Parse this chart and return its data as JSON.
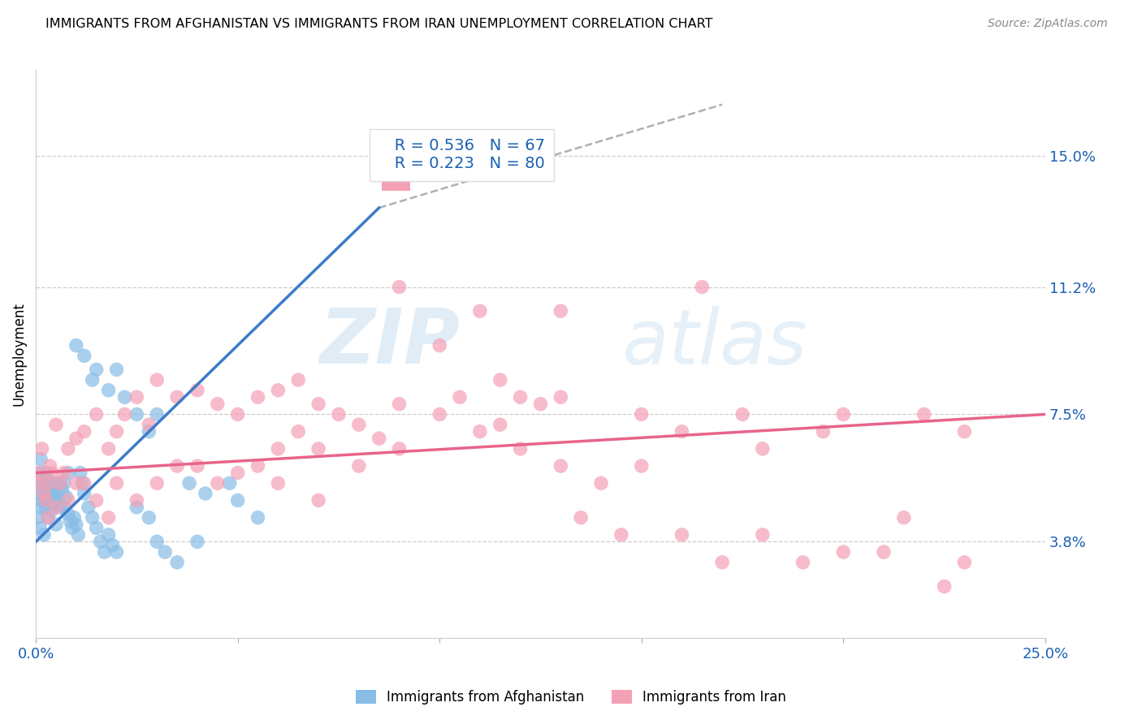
{
  "title": "IMMIGRANTS FROM AFGHANISTAN VS IMMIGRANTS FROM IRAN UNEMPLOYMENT CORRELATION CHART",
  "source": "Source: ZipAtlas.com",
  "ylabel": "Unemployment",
  "ytick_values": [
    3.8,
    7.5,
    11.2,
    15.0
  ],
  "xlim": [
    0.0,
    25.0
  ],
  "ylim": [
    1.0,
    17.5
  ],
  "afghanistan_color": "#88bde6",
  "iran_color": "#f4a0b5",
  "afghanistan_R": 0.536,
  "afghanistan_N": 67,
  "iran_R": 0.223,
  "iran_N": 80,
  "legend_label_afghanistan": "Immigrants from Afghanistan",
  "legend_label_iran": "Immigrants from Iran",
  "watermark_zip": "ZIP",
  "watermark_atlas": "atlas",
  "blue_line_color": "#3d7cc9",
  "pink_line_color": "#e8648a",
  "gray_dash_color": "#b0b0b0",
  "legend_text_color": "#1a5fb4",
  "afghanistan_line": [
    [
      0.0,
      3.8
    ],
    [
      8.5,
      13.5
    ]
  ],
  "iran_line": [
    [
      0.0,
      5.8
    ],
    [
      25.0,
      7.5
    ]
  ],
  "diagonal_line": [
    [
      8.5,
      13.5
    ],
    [
      17.0,
      16.5
    ]
  ],
  "afghanistan_points": [
    [
      0.05,
      5.5
    ],
    [
      0.08,
      5.2
    ],
    [
      0.1,
      5.8
    ],
    [
      0.12,
      6.2
    ],
    [
      0.15,
      5.0
    ],
    [
      0.18,
      5.3
    ],
    [
      0.2,
      5.5
    ],
    [
      0.22,
      5.1
    ],
    [
      0.25,
      4.8
    ],
    [
      0.28,
      5.6
    ],
    [
      0.3,
      5.4
    ],
    [
      0.32,
      5.2
    ],
    [
      0.35,
      5.0
    ],
    [
      0.38,
      4.7
    ],
    [
      0.4,
      5.3
    ],
    [
      0.42,
      5.1
    ],
    [
      0.45,
      4.9
    ],
    [
      0.48,
      5.5
    ],
    [
      0.5,
      5.2
    ],
    [
      0.55,
      5.0
    ],
    [
      0.6,
      5.5
    ],
    [
      0.65,
      5.3
    ],
    [
      0.7,
      4.8
    ],
    [
      0.75,
      5.1
    ],
    [
      0.8,
      4.6
    ],
    [
      0.85,
      4.4
    ],
    [
      0.9,
      4.2
    ],
    [
      0.95,
      4.5
    ],
    [
      1.0,
      4.3
    ],
    [
      1.05,
      4.0
    ],
    [
      1.1,
      5.8
    ],
    [
      1.15,
      5.5
    ],
    [
      1.2,
      5.2
    ],
    [
      1.3,
      4.8
    ],
    [
      1.4,
      4.5
    ],
    [
      1.5,
      4.2
    ],
    [
      1.6,
      3.8
    ],
    [
      1.7,
      3.5
    ],
    [
      1.8,
      4.0
    ],
    [
      1.9,
      3.7
    ],
    [
      2.0,
      3.5
    ],
    [
      1.0,
      9.5
    ],
    [
      1.5,
      8.8
    ],
    [
      1.8,
      8.2
    ],
    [
      2.0,
      8.8
    ],
    [
      2.2,
      8.0
    ],
    [
      2.5,
      7.5
    ],
    [
      2.8,
      7.0
    ],
    [
      3.0,
      7.5
    ],
    [
      1.2,
      9.2
    ],
    [
      1.4,
      8.5
    ],
    [
      2.5,
      4.8
    ],
    [
      2.8,
      4.5
    ],
    [
      3.0,
      3.8
    ],
    [
      3.2,
      3.5
    ],
    [
      3.5,
      3.2
    ],
    [
      4.0,
      3.8
    ],
    [
      3.8,
      5.5
    ],
    [
      4.2,
      5.2
    ],
    [
      4.8,
      5.5
    ],
    [
      5.0,
      5.0
    ],
    [
      5.5,
      4.5
    ],
    [
      0.05,
      4.5
    ],
    [
      0.1,
      4.2
    ],
    [
      0.15,
      4.8
    ],
    [
      0.2,
      4.0
    ],
    [
      0.25,
      5.8
    ],
    [
      0.3,
      4.5
    ],
    [
      0.4,
      5.5
    ],
    [
      0.5,
      4.3
    ],
    [
      0.6,
      4.8
    ],
    [
      0.7,
      5.5
    ],
    [
      0.8,
      5.8
    ]
  ],
  "iran_points": [
    [
      0.05,
      5.5
    ],
    [
      0.1,
      5.8
    ],
    [
      0.15,
      6.5
    ],
    [
      0.2,
      5.2
    ],
    [
      0.25,
      5.0
    ],
    [
      0.3,
      5.5
    ],
    [
      0.35,
      6.0
    ],
    [
      0.4,
      5.8
    ],
    [
      0.5,
      7.2
    ],
    [
      0.6,
      5.5
    ],
    [
      0.7,
      5.8
    ],
    [
      0.8,
      6.5
    ],
    [
      1.0,
      6.8
    ],
    [
      1.2,
      7.0
    ],
    [
      1.5,
      7.5
    ],
    [
      1.8,
      6.5
    ],
    [
      2.0,
      7.0
    ],
    [
      2.2,
      7.5
    ],
    [
      2.5,
      8.0
    ],
    [
      2.8,
      7.2
    ],
    [
      3.0,
      8.5
    ],
    [
      3.5,
      8.0
    ],
    [
      4.0,
      8.2
    ],
    [
      4.5,
      7.8
    ],
    [
      5.0,
      7.5
    ],
    [
      5.5,
      8.0
    ],
    [
      6.0,
      8.2
    ],
    [
      6.5,
      8.5
    ],
    [
      7.0,
      7.8
    ],
    [
      7.5,
      7.5
    ],
    [
      8.0,
      7.2
    ],
    [
      9.0,
      7.8
    ],
    [
      10.0,
      9.5
    ],
    [
      11.0,
      10.5
    ],
    [
      12.0,
      8.0
    ],
    [
      13.0,
      8.0
    ],
    [
      1.0,
      5.5
    ],
    [
      1.5,
      5.0
    ],
    [
      2.0,
      5.5
    ],
    [
      2.5,
      5.0
    ],
    [
      3.0,
      5.5
    ],
    [
      3.5,
      6.0
    ],
    [
      4.0,
      6.0
    ],
    [
      4.5,
      5.5
    ],
    [
      5.0,
      5.8
    ],
    [
      5.5,
      6.0
    ],
    [
      6.0,
      6.5
    ],
    [
      6.5,
      7.0
    ],
    [
      7.0,
      6.5
    ],
    [
      8.0,
      6.0
    ],
    [
      9.0,
      6.5
    ],
    [
      10.0,
      7.5
    ],
    [
      11.0,
      7.0
    ],
    [
      12.0,
      6.5
    ],
    [
      13.0,
      6.0
    ],
    [
      14.0,
      5.5
    ],
    [
      15.0,
      7.5
    ],
    [
      16.0,
      7.0
    ],
    [
      18.0,
      6.5
    ],
    [
      14.5,
      4.0
    ],
    [
      16.0,
      4.0
    ],
    [
      18.0,
      4.0
    ],
    [
      20.0,
      3.5
    ],
    [
      21.0,
      3.5
    ],
    [
      20.0,
      7.5
    ],
    [
      22.0,
      7.5
    ],
    [
      23.0,
      7.0
    ],
    [
      9.0,
      11.2
    ],
    [
      16.5,
      11.2
    ],
    [
      13.0,
      10.5
    ],
    [
      0.3,
      4.5
    ],
    [
      0.5,
      4.8
    ],
    [
      0.8,
      5.0
    ],
    [
      1.2,
      5.5
    ],
    [
      1.8,
      4.5
    ],
    [
      6.0,
      5.5
    ],
    [
      7.0,
      5.0
    ],
    [
      8.5,
      6.8
    ],
    [
      11.5,
      7.2
    ],
    [
      12.5,
      7.8
    ],
    [
      15.0,
      6.0
    ],
    [
      17.0,
      3.2
    ],
    [
      19.0,
      3.2
    ],
    [
      23.0,
      3.2
    ],
    [
      13.5,
      4.5
    ],
    [
      17.5,
      7.5
    ],
    [
      19.5,
      7.0
    ],
    [
      21.5,
      4.5
    ],
    [
      22.5,
      2.5
    ],
    [
      10.5,
      8.0
    ],
    [
      11.5,
      8.5
    ]
  ]
}
